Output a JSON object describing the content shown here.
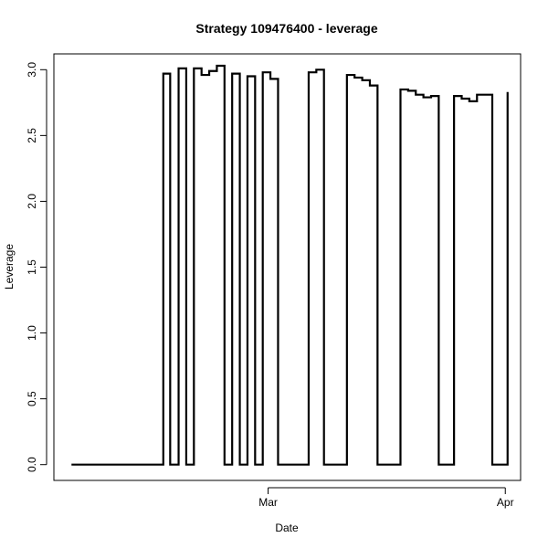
{
  "chart_data": {
    "type": "line",
    "title": "Strategy 109476400 - leverage",
    "xlabel": "Date",
    "ylabel": "Leverage",
    "x_unit": "days (Feb 1 = day 0)",
    "xlim": [
      0,
      61
    ],
    "ylim": [
      -0.12,
      3.12
    ],
    "x_ticks": [
      {
        "value": 28,
        "label": "Mar"
      },
      {
        "value": 59,
        "label": "Apr"
      }
    ],
    "y_ticks": [
      {
        "value": 0.0,
        "label": "0.0"
      },
      {
        "value": 0.5,
        "label": "0.5"
      },
      {
        "value": 1.0,
        "label": "1.0"
      },
      {
        "value": 1.5,
        "label": "1.5"
      },
      {
        "value": 2.0,
        "label": "2.0"
      },
      {
        "value": 2.5,
        "label": "2.5"
      },
      {
        "value": 3.0,
        "label": "3.0"
      }
    ],
    "grid": false,
    "legend": "none",
    "step": true,
    "series": [
      {
        "name": "leverage",
        "color": "#000000",
        "steps": [
          {
            "x": 2.3,
            "y": 0.0
          },
          {
            "x": 14.3,
            "y": 2.97
          },
          {
            "x": 15.2,
            "y": 0.0
          },
          {
            "x": 16.3,
            "y": 3.01
          },
          {
            "x": 17.3,
            "y": 0.0
          },
          {
            "x": 18.3,
            "y": 3.01
          },
          {
            "x": 19.3,
            "y": 2.96
          },
          {
            "x": 20.3,
            "y": 2.99
          },
          {
            "x": 21.3,
            "y": 3.03
          },
          {
            "x": 22.3,
            "y": 0.0
          },
          {
            "x": 23.3,
            "y": 2.97
          },
          {
            "x": 24.3,
            "y": 0.0
          },
          {
            "x": 25.3,
            "y": 2.95
          },
          {
            "x": 26.3,
            "y": 0.0
          },
          {
            "x": 27.3,
            "y": 2.98
          },
          {
            "x": 28.3,
            "y": 2.93
          },
          {
            "x": 29.3,
            "y": 0.0
          },
          {
            "x": 33.3,
            "y": 2.98
          },
          {
            "x": 34.3,
            "y": 3.0
          },
          {
            "x": 35.3,
            "y": 0.0
          },
          {
            "x": 38.3,
            "y": 2.96
          },
          {
            "x": 39.3,
            "y": 2.94
          },
          {
            "x": 40.3,
            "y": 2.92
          },
          {
            "x": 41.3,
            "y": 2.88
          },
          {
            "x": 42.3,
            "y": 0.0
          },
          {
            "x": 45.3,
            "y": 2.85
          },
          {
            "x": 46.3,
            "y": 2.84
          },
          {
            "x": 47.3,
            "y": 2.81
          },
          {
            "x": 48.3,
            "y": 2.79
          },
          {
            "x": 49.3,
            "y": 2.8
          },
          {
            "x": 50.3,
            "y": 0.0
          },
          {
            "x": 52.3,
            "y": 2.8
          },
          {
            "x": 53.3,
            "y": 2.78
          },
          {
            "x": 54.3,
            "y": 2.76
          },
          {
            "x": 55.3,
            "y": 2.81
          },
          {
            "x": 57.3,
            "y": 0.0
          },
          {
            "x": 59.3,
            "y": 2.83
          }
        ],
        "end_x": 59.3
      }
    ]
  }
}
